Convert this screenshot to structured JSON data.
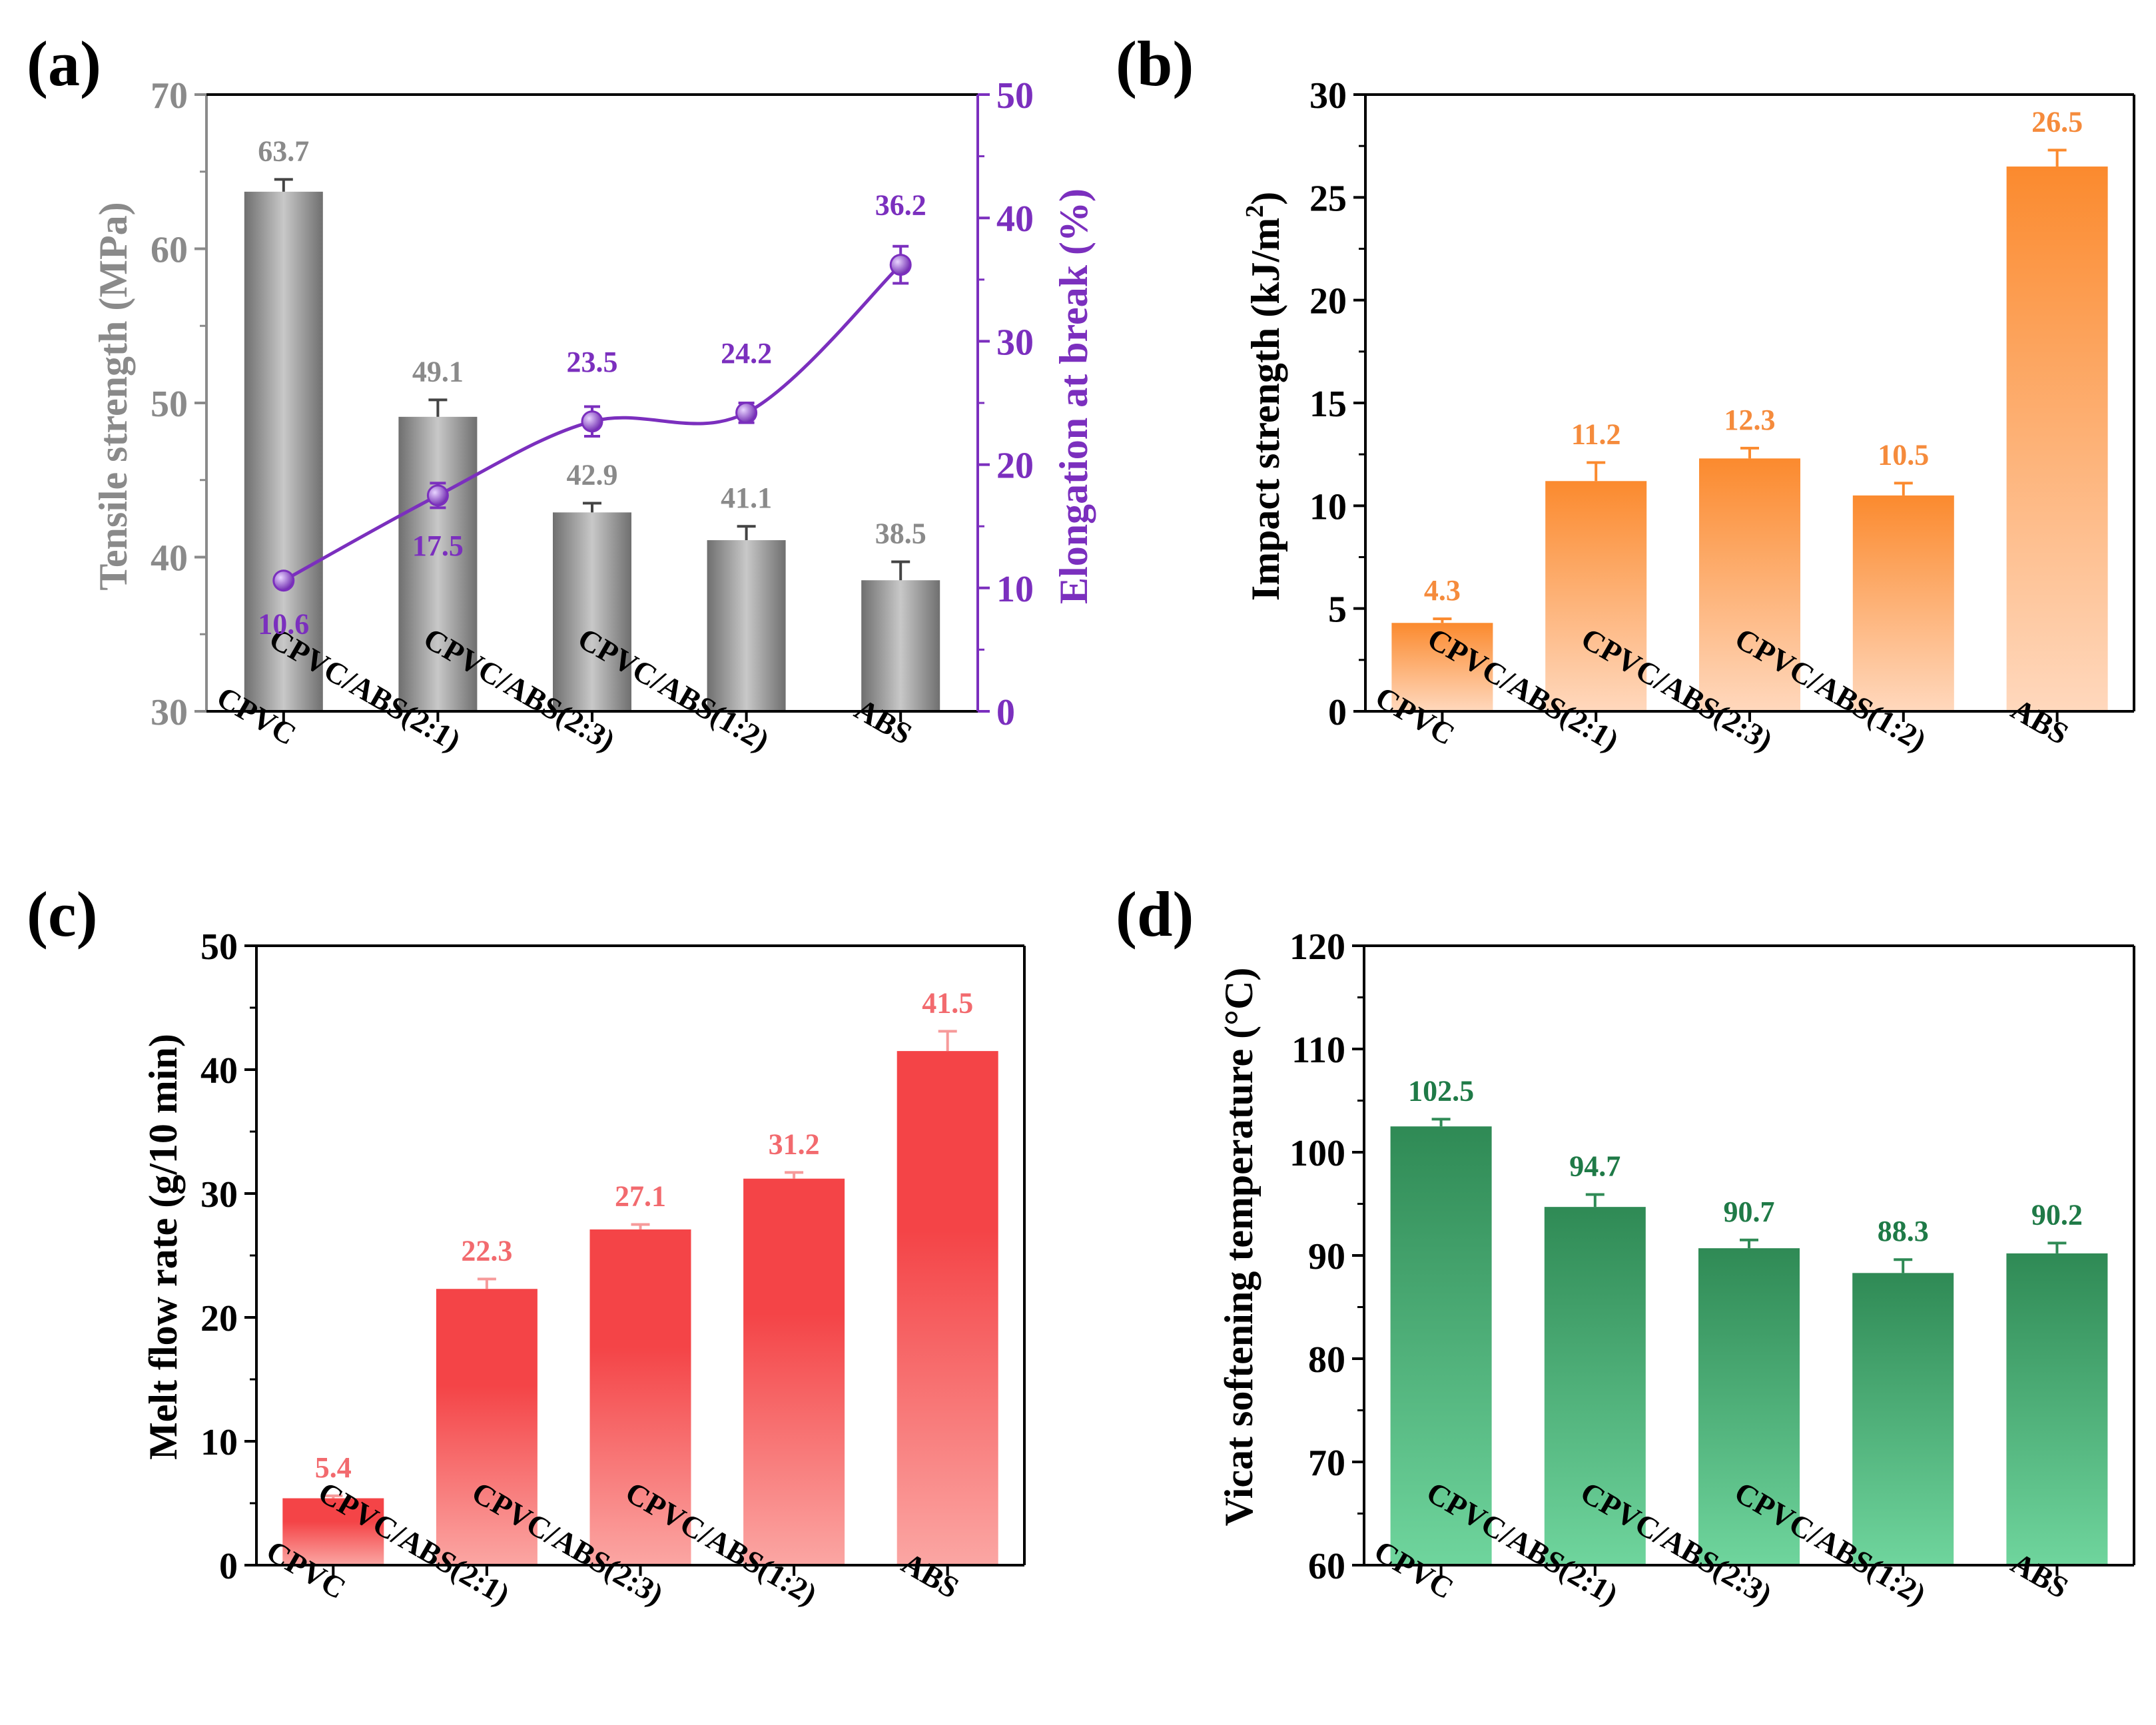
{
  "chart_data": [
    {
      "panel": "(a)",
      "type": "bar",
      "categories": [
        "CPVC",
        "CPVC/ABS(2:1)",
        "CPVC/ABS(2:3)",
        "CPVC/ABS(1:2)",
        "ABS"
      ],
      "series": [
        {
          "name": "Tensile strength",
          "kind": "bar",
          "axis": "left",
          "values": [
            63.7,
            49.1,
            42.9,
            41.1,
            38.5
          ],
          "errors": [
            0.8,
            1.1,
            0.6,
            0.9,
            1.2
          ],
          "labels": [
            "63.7",
            "49.1",
            "42.9",
            "41.1",
            "38.5"
          ],
          "color": "#8c8c8c",
          "label_color": "#8a8a8a"
        },
        {
          "name": "Elongation at break",
          "kind": "line",
          "axis": "right",
          "values": [
            10.6,
            17.5,
            23.5,
            24.2,
            36.2
          ],
          "errors": [
            0.5,
            1.0,
            1.2,
            0.8,
            1.5
          ],
          "labels": [
            "10.6",
            "17.5",
            "23.5",
            "24.2",
            "36.2"
          ],
          "color": "#7b2fbe"
        }
      ],
      "ylabel": "Tensile strength (MPa)",
      "y2label": "Elongation at break (%)",
      "ylim": [
        30,
        70
      ],
      "yticks": [
        "30",
        "40",
        "50",
        "60",
        "70"
      ],
      "y2lim": [
        0,
        50
      ],
      "y2ticks": [
        "0",
        "10",
        "20",
        "30",
        "40",
        "50"
      ]
    },
    {
      "panel": "(b)",
      "type": "bar",
      "categories": [
        "CPVC",
        "CPVC/ABS(2:1)",
        "CPVC/ABS(2:3)",
        "CPVC/ABS(1:2)",
        "ABS"
      ],
      "values": [
        4.3,
        11.2,
        12.3,
        10.5,
        26.5
      ],
      "errors": [
        0.2,
        0.9,
        0.5,
        0.6,
        0.8
      ],
      "labels": [
        "4.3",
        "11.2",
        "12.3",
        "10.5",
        "26.5"
      ],
      "ylabel": "Impact strength (kJ/m",
      "ylabel_sup": "2",
      "ylabel_end": ")",
      "ylim": [
        0,
        30
      ],
      "yticks": [
        "0",
        "5",
        "10",
        "15",
        "20",
        "25",
        "30"
      ],
      "color_top": "#fb8a2e",
      "color_bottom": "#ffd8bd",
      "label_color": "#f58b3c"
    },
    {
      "panel": "(c)",
      "type": "bar",
      "categories": [
        "CPVC",
        "CPVC/ABS(2:1)",
        "CPVC/ABS(2:3)",
        "CPVC/ABS(1:2)",
        "ABS"
      ],
      "values": [
        5.4,
        22.3,
        27.1,
        31.2,
        41.5
      ],
      "errors": [
        0.2,
        0.8,
        0.4,
        0.5,
        1.6
      ],
      "labels": [
        "5.4",
        "22.3",
        "27.1",
        "31.2",
        "41.5"
      ],
      "ylabel": "Melt flow rate (g/10 min)",
      "ylim": [
        0,
        50
      ],
      "yticks": [
        "0",
        "10",
        "20",
        "30",
        "40",
        "50"
      ],
      "color_top": "#f44447",
      "color_bottom": "#fba6a3",
      "label_color": "#f26a6e"
    },
    {
      "panel": "(d)",
      "type": "bar",
      "categories": [
        "CPVC",
        "CPVC/ABS(2:1)",
        "CPVC/ABS(2:3)",
        "CPVC/ABS(1:2)",
        "ABS"
      ],
      "values": [
        102.5,
        94.7,
        90.7,
        88.3,
        90.2
      ],
      "errors": [
        0.7,
        1.2,
        0.8,
        1.3,
        1.0
      ],
      "labels": [
        "102.5",
        "94.7",
        "90.7",
        "88.3",
        "90.2"
      ],
      "ylabel": "Vicat softening temperature (°C)",
      "ylim": [
        60,
        120
      ],
      "yticks": [
        "60",
        "70",
        "80",
        "90",
        "100",
        "110",
        "120"
      ],
      "color_top": "#2f8a55",
      "color_bottom": "#6fd59d",
      "label_color": "#1f7a47"
    }
  ]
}
